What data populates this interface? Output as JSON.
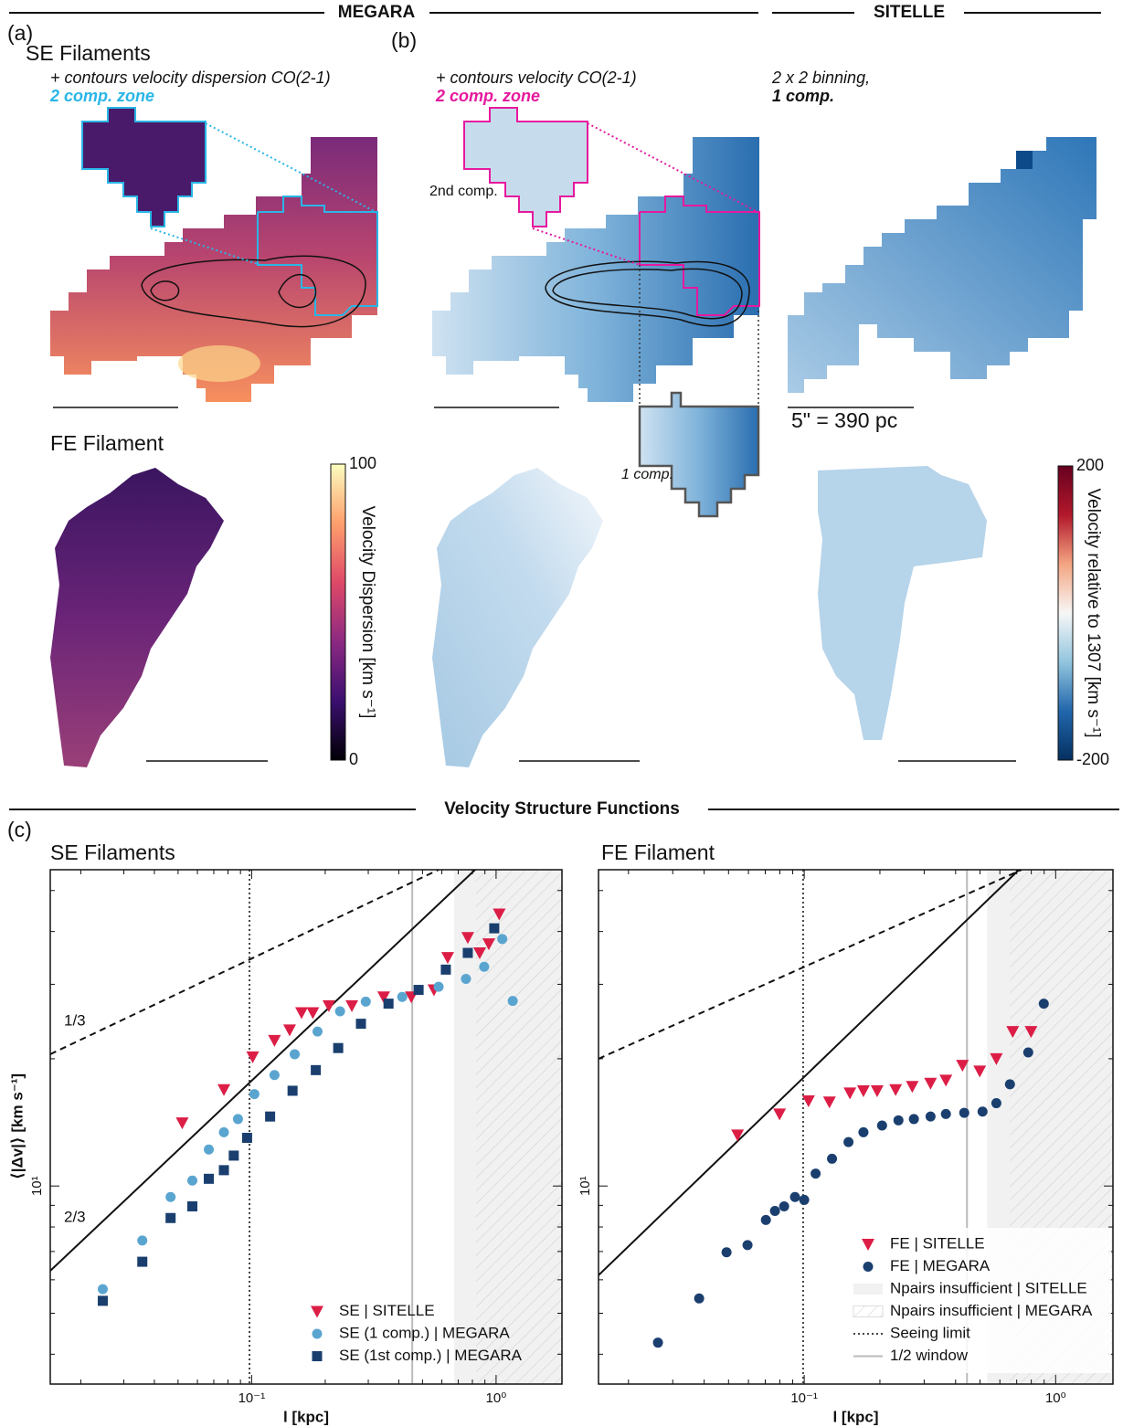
{
  "header": {
    "left": "MEGARA",
    "right": "SITELLE",
    "bottom": "Velocity Structure Functions"
  },
  "panel_labels": [
    "(a)",
    "(b)",
    "(c)"
  ],
  "maps": {
    "se_title": "SE Filaments",
    "a_note": "+ contours velocity dispersion CO(2-1)",
    "a_zone": "2 comp. zone",
    "b_note": "+ contours velocity CO(2-1)",
    "b_zone": "2 comp. zone",
    "c_note": "2 x 2 binning,",
    "c_comp": "1 comp.",
    "second_comp": "2nd comp.",
    "one_comp": "1 comp.",
    "scale": "5\" = 390 pc",
    "fe_title": "FE Filament"
  },
  "colorbars": [
    {
      "label": "Velocity Dispersion [km s⁻¹]",
      "range": [
        0,
        100
      ],
      "ticks": [
        0,
        100
      ],
      "colors": [
        "#000004",
        "#3b0f70",
        "#8c2981",
        "#de4968",
        "#fe9f6d",
        "#fcfdbf"
      ]
    },
    {
      "label": "Velocity relative to 1307 [km s⁻¹]",
      "range": [
        -200,
        200
      ],
      "ticks": [
        -200,
        200
      ],
      "colors": [
        "#053061",
        "#2166ac",
        "#92c5de",
        "#f7f7f7",
        "#f4a582",
        "#b2182b",
        "#67001f"
      ]
    }
  ],
  "chart_data": [
    {
      "type": "scatter",
      "title": "SE Filaments",
      "xlabel": "l [kpc]",
      "ylabel": "⟨|Δv|⟩ [km s⁻¹]",
      "xscale": "log",
      "yscale": "log",
      "xlim": [
        0.015,
        1.86
      ],
      "ylim": [
        3.4,
        56
      ],
      "xticks": [
        {
          "value": 0.1,
          "label": "10⁻¹"
        },
        {
          "value": 1,
          "label": "10⁰"
        }
      ],
      "yticks": [
        {
          "value": 10,
          "label": "10¹"
        }
      ],
      "xminor": [
        0.02,
        0.03,
        0.04,
        0.05,
        0.06,
        0.07,
        0.08,
        0.09,
        0.2,
        0.3,
        0.4,
        0.5,
        0.6,
        0.7,
        0.8,
        0.9
      ],
      "yminor": [
        4,
        5,
        6,
        7,
        8,
        9,
        20,
        30,
        40,
        50
      ],
      "legend": "lower right",
      "regions": [
        {
          "x0": 0.674,
          "style": "shade"
        },
        {
          "x0": 0.828,
          "style": "hatch"
        }
      ],
      "vlines": [
        {
          "x": 0.098,
          "style": "dotted",
          "color": "#444444"
        },
        {
          "x": 0.454,
          "style": "solid",
          "color": "#bbbbbb"
        }
      ],
      "lines": [
        {
          "label": "1/3",
          "style": "dashed",
          "x": [
            0.015,
            0.582
          ],
          "y": [
            20.5,
            56
          ]
        },
        {
          "label": "2/3",
          "style": "solid",
          "x": [
            0.015,
            0.821
          ],
          "y": [
            6.3,
            56
          ]
        }
      ],
      "series": [
        {
          "name": "SE | SITELLE",
          "marker": "triangle",
          "color": "#dc1e46",
          "x": [
            0.052,
            0.077,
            0.101,
            0.124,
            0.143,
            0.16,
            0.178,
            0.207,
            0.257,
            0.347,
            0.45,
            0.557,
            0.634,
            0.766,
            0.857,
            0.934,
            1.03
          ],
          "values": [
            14.1,
            16.9,
            20.2,
            22.1,
            23.4,
            25.7,
            25.7,
            26.7,
            26.7,
            28.0,
            28.0,
            29.1,
            34.7,
            38.7,
            35.6,
            37.4,
            44.0
          ]
        },
        {
          "name": "SE (1 comp.) | MEGARA",
          "marker": "circle",
          "color": "#5aa5d0",
          "x": [
            0.0246,
            0.0357,
            0.0466,
            0.0572,
            0.0668,
            0.077,
            0.0879,
            0.1026,
            0.124,
            0.15,
            0.186,
            0.23,
            0.293,
            0.413,
            0.582,
            0.753,
            0.894,
            1.06,
            1.17
          ],
          "values": [
            5.7,
            7.43,
            9.42,
            10.3,
            12.2,
            13.4,
            14.4,
            16.5,
            18.3,
            20.5,
            23.2,
            25.9,
            27.3,
            28.0,
            29.6,
            30.9,
            33.0,
            38.4,
            27.4
          ]
        },
        {
          "name": "SE (1st comp.) | MEGARA",
          "marker": "square",
          "color": "#1a3f6f",
          "x": [
            0.0246,
            0.0357,
            0.0466,
            0.0572,
            0.0668,
            0.077,
            0.0845,
            0.0958,
            0.119,
            0.147,
            0.183,
            0.226,
            0.28,
            0.363,
            0.482,
            0.623,
            0.766,
            0.983
          ],
          "values": [
            5.35,
            6.62,
            8.4,
            8.95,
            10.4,
            10.9,
            11.8,
            13.0,
            14.6,
            16.8,
            18.8,
            21.2,
            24.2,
            27.0,
            29.1,
            32.5,
            35.6,
            40.7
          ]
        }
      ]
    },
    {
      "type": "scatter",
      "title": "FE Filament",
      "xlabel": "l [kpc]",
      "xscale": "log",
      "yscale": "log",
      "xlim": [
        0.0152,
        1.69
      ],
      "ylim": [
        3.4,
        56
      ],
      "xticks": [
        {
          "value": 0.1,
          "label": "10⁻¹"
        },
        {
          "value": 1,
          "label": "10⁰"
        }
      ],
      "yticks": [
        {
          "value": 10,
          "label": "10¹"
        }
      ],
      "xminor": [
        0.02,
        0.03,
        0.04,
        0.05,
        0.06,
        0.07,
        0.08,
        0.09,
        0.2,
        0.3,
        0.4,
        0.5,
        0.6,
        0.7,
        0.8,
        0.9
      ],
      "yminor": [
        4,
        5,
        6,
        7,
        8,
        9,
        20,
        30,
        40,
        50
      ],
      "legend": "lower right",
      "regions": [
        {
          "name": "Npairs insufficient | SITELLE",
          "x0": 0.534,
          "style": "shade"
        },
        {
          "name": "Npairs insufficient | MEGARA",
          "x0": 0.658,
          "style": "hatch"
        }
      ],
      "vlines": [
        {
          "name": "Seeing limit",
          "x": 0.099,
          "style": "dotted",
          "color": "#444444"
        },
        {
          "name": "1/2 window",
          "x": 0.444,
          "style": "solid",
          "color": "#bbbbbb"
        }
      ],
      "lines": [
        {
          "style": "dashed",
          "x": [
            0.0152,
            0.733
          ],
          "y": [
            20.0,
            56
          ]
        },
        {
          "style": "solid",
          "x": [
            0.0152,
            0.715
          ],
          "y": [
            6.15,
            56
          ]
        }
      ],
      "series": [
        {
          "name": "FE | SITELLE",
          "marker": "triangle",
          "color": "#dc1e46",
          "x": [
            0.0543,
            0.0798,
            0.104,
            0.126,
            0.152,
            0.172,
            0.195,
            0.231,
            0.269,
            0.318,
            0.366,
            0.426,
            0.499,
            0.581,
            0.675,
            0.798
          ],
          "values": [
            13.2,
            14.8,
            15.9,
            15.8,
            16.6,
            16.8,
            16.8,
            16.9,
            17.2,
            17.5,
            17.8,
            19.3,
            18.7,
            20.0,
            23.2,
            23.2
          ]
        },
        {
          "name": "FE | MEGARA",
          "marker": "circle",
          "color": "#1a3f6f",
          "x": [
            0.0262,
            0.0382,
            0.0491,
            0.0595,
            0.0704,
            0.0765,
            0.0832,
            0.0919,
            0.1,
            0.111,
            0.129,
            0.15,
            0.172,
            0.204,
            0.237,
            0.273,
            0.318,
            0.366,
            0.433,
            0.512,
            0.581,
            0.658,
            0.778,
            0.897
          ],
          "values": [
            4.26,
            5.42,
            6.97,
            7.25,
            8.31,
            8.73,
            8.95,
            9.42,
            9.27,
            10.7,
            11.6,
            12.7,
            13.4,
            13.9,
            14.3,
            14.4,
            14.6,
            14.8,
            14.9,
            15.0,
            15.7,
            17.4,
            20.7,
            27.0
          ]
        }
      ]
    }
  ]
}
